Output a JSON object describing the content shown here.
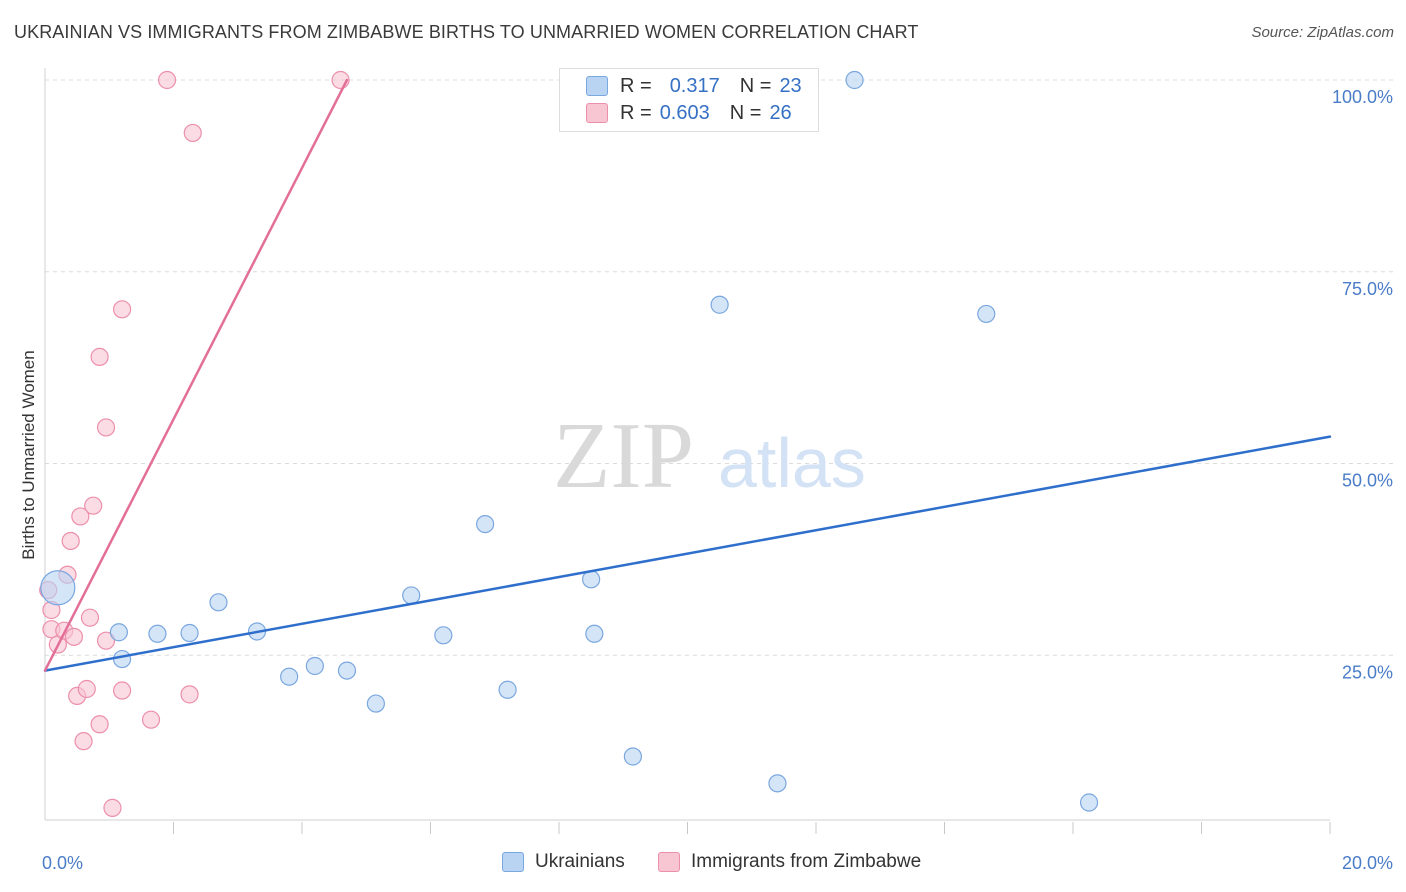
{
  "title": "UKRAINIAN VS IMMIGRANTS FROM ZIMBABWE BIRTHS TO UNMARRIED WOMEN CORRELATION CHART",
  "source": "Source: ZipAtlas.com",
  "watermark": {
    "zip": "ZIP",
    "atlas": "atlas"
  },
  "legend": {
    "r_label": "R =",
    "n_label": "N =",
    "ukrainians": {
      "r": "0.317",
      "n": "23"
    },
    "zimbabwe": {
      "r": "0.603",
      "n": "26"
    }
  },
  "bottom_legend": {
    "ukrainians": "Ukrainians",
    "zimbabwe": "Immigrants from Zimbabwe"
  },
  "colors": {
    "blue_fill": "#b9d3f3",
    "blue_stroke": "#7aa7df",
    "blue_line": "#2f6fcc",
    "pink_fill": "#f8c5d3",
    "pink_stroke": "#ec8fab",
    "pink_line": "#e36f98",
    "axis_text": "#4a7cc8",
    "grid": "#dcdcdc"
  },
  "chart_data": {
    "type": "scatter",
    "title": "UKRAINIAN VS IMMIGRANTS FROM ZIMBABWE BIRTHS TO UNMARRIED WOMEN CORRELATION CHART",
    "xlabel": "",
    "ylabel": "Births to Unmarried Women",
    "xlim": [
      0,
      20
    ],
    "ylim": [
      0,
      100
    ],
    "x_tick_labels": [
      {
        "value": 0,
        "label": "0.0%"
      },
      {
        "value": 20,
        "label": "20.0%"
      }
    ],
    "x_minor_ticks": [
      0,
      2,
      4,
      6,
      8,
      10,
      12,
      14,
      16,
      18,
      20
    ],
    "y_ticks": [
      {
        "value": 25,
        "label": "25.0%"
      },
      {
        "value": 50,
        "label": "50.0%"
      },
      {
        "value": 75,
        "label": "75.0%"
      },
      {
        "value": 100,
        "label": "100.0%"
      }
    ],
    "series": [
      {
        "name": "Ukrainians",
        "r": 0.317,
        "n": 23,
        "trend": {
          "x": [
            0,
            20
          ],
          "y": [
            23.0,
            53.5
          ]
        },
        "points": [
          {
            "x": 0.2,
            "y": 33.8,
            "size": "large"
          },
          {
            "x": 1.15,
            "y": 28.0
          },
          {
            "x": 1.2,
            "y": 24.5
          },
          {
            "x": 1.75,
            "y": 27.8
          },
          {
            "x": 2.25,
            "y": 27.9
          },
          {
            "x": 2.7,
            "y": 31.9
          },
          {
            "x": 3.3,
            "y": 28.1
          },
          {
            "x": 3.8,
            "y": 22.2
          },
          {
            "x": 4.2,
            "y": 23.6
          },
          {
            "x": 4.7,
            "y": 23.0
          },
          {
            "x": 5.15,
            "y": 18.7
          },
          {
            "x": 5.7,
            "y": 32.8
          },
          {
            "x": 6.2,
            "y": 27.6
          },
          {
            "x": 6.85,
            "y": 42.1
          },
          {
            "x": 7.2,
            "y": 20.5
          },
          {
            "x": 8.5,
            "y": 34.9
          },
          {
            "x": 8.55,
            "y": 27.8
          },
          {
            "x": 9.15,
            "y": 11.8
          },
          {
            "x": 10.5,
            "y": 70.7
          },
          {
            "x": 11.4,
            "y": 8.3
          },
          {
            "x": 12.6,
            "y": 100.0
          },
          {
            "x": 14.65,
            "y": 69.5
          },
          {
            "x": 16.25,
            "y": 5.8
          }
        ]
      },
      {
        "name": "Immigrants from Zimbabwe",
        "r": 0.603,
        "n": 26,
        "trend": {
          "x": [
            0,
            4.7
          ],
          "y": [
            23.0,
            100.0
          ]
        },
        "points": [
          {
            "x": 0.05,
            "y": 33.5
          },
          {
            "x": 0.1,
            "y": 30.9
          },
          {
            "x": 0.1,
            "y": 28.4
          },
          {
            "x": 0.2,
            "y": 26.4
          },
          {
            "x": 0.3,
            "y": 28.2
          },
          {
            "x": 0.35,
            "y": 35.5
          },
          {
            "x": 0.4,
            "y": 39.9
          },
          {
            "x": 0.45,
            "y": 27.4
          },
          {
            "x": 0.5,
            "y": 19.7
          },
          {
            "x": 0.55,
            "y": 43.1
          },
          {
            "x": 0.6,
            "y": 13.8
          },
          {
            "x": 0.65,
            "y": 20.6
          },
          {
            "x": 0.7,
            "y": 29.9
          },
          {
            "x": 0.75,
            "y": 44.5
          },
          {
            "x": 0.85,
            "y": 16.0
          },
          {
            "x": 0.85,
            "y": 63.9
          },
          {
            "x": 0.95,
            "y": 26.9
          },
          {
            "x": 0.95,
            "y": 54.7
          },
          {
            "x": 1.05,
            "y": 5.1
          },
          {
            "x": 1.2,
            "y": 20.4
          },
          {
            "x": 1.2,
            "y": 70.1
          },
          {
            "x": 1.65,
            "y": 16.6
          },
          {
            "x": 1.9,
            "y": 100.0
          },
          {
            "x": 2.25,
            "y": 19.9
          },
          {
            "x": 2.3,
            "y": 93.1
          },
          {
            "x": 4.6,
            "y": 100.0
          }
        ]
      }
    ]
  }
}
